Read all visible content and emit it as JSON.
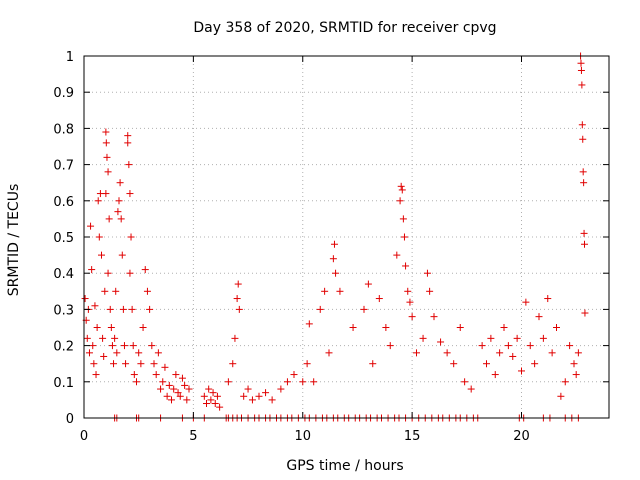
{
  "chart_data": {
    "type": "scatter",
    "title": "Day 358 of 2020, SRMTID for receiver cpvg",
    "xlabel": "GPS time / hours",
    "ylabel": "SRMTID / TECUs",
    "xlim": [
      0,
      24
    ],
    "ylim": [
      0,
      1
    ],
    "xticks": [
      0,
      5,
      10,
      15,
      20
    ],
    "yticks": [
      0,
      0.1,
      0.2,
      0.3,
      0.4,
      0.5,
      0.6,
      0.7,
      0.8,
      0.9,
      1
    ],
    "grid": true,
    "marker": "+",
    "color": "#e00000",
    "series": [
      {
        "name": "SRMTID",
        "points": [
          [
            0.05,
            0.33
          ],
          [
            0.1,
            0.27
          ],
          [
            0.15,
            0.22
          ],
          [
            0.2,
            0.3
          ],
          [
            0.25,
            0.18
          ],
          [
            0.3,
            0.53
          ],
          [
            0.35,
            0.41
          ],
          [
            0.4,
            0.2
          ],
          [
            0.45,
            0.15
          ],
          [
            0.5,
            0.31
          ],
          [
            0.55,
            0.12
          ],
          [
            0.6,
            0.25
          ],
          [
            0.65,
            0.6
          ],
          [
            0.7,
            0.5
          ],
          [
            0.75,
            0.62
          ],
          [
            0.8,
            0.45
          ],
          [
            0.85,
            0.22
          ],
          [
            0.9,
            0.17
          ],
          [
            0.95,
            0.35
          ],
          [
            1.0,
            0.62
          ],
          [
            1.0,
            0.79
          ],
          [
            1.02,
            0.76
          ],
          [
            1.05,
            0.72
          ],
          [
            1.1,
            0.68
          ],
          [
            1.1,
            0.4
          ],
          [
            1.15,
            0.55
          ],
          [
            1.2,
            0.3
          ],
          [
            1.25,
            0.25
          ],
          [
            1.3,
            0.2
          ],
          [
            1.35,
            0.15
          ],
          [
            1.4,
            0.22
          ],
          [
            1.45,
            0.35
          ],
          [
            1.5,
            0.18
          ],
          [
            1.55,
            0.57
          ],
          [
            1.6,
            0.6
          ],
          [
            1.65,
            0.65
          ],
          [
            1.7,
            0.55
          ],
          [
            1.75,
            0.45
          ],
          [
            1.8,
            0.3
          ],
          [
            1.85,
            0.2
          ],
          [
            1.9,
            0.15
          ],
          [
            2.0,
            0.78
          ],
          [
            2.0,
            0.76
          ],
          [
            2.05,
            0.7
          ],
          [
            2.1,
            0.62
          ],
          [
            2.1,
            0.4
          ],
          [
            2.15,
            0.5
          ],
          [
            2.2,
            0.3
          ],
          [
            2.25,
            0.2
          ],
          [
            2.3,
            0.12
          ],
          [
            2.4,
            0.1
          ],
          [
            2.5,
            0.18
          ],
          [
            2.6,
            0.15
          ],
          [
            2.7,
            0.25
          ],
          [
            2.8,
            0.41
          ],
          [
            2.9,
            0.35
          ],
          [
            3.0,
            0.3
          ],
          [
            3.1,
            0.2
          ],
          [
            3.2,
            0.15
          ],
          [
            3.3,
            0.12
          ],
          [
            3.4,
            0.18
          ],
          [
            3.5,
            0.08
          ],
          [
            3.6,
            0.1
          ],
          [
            3.7,
            0.14
          ],
          [
            3.8,
            0.06
          ],
          [
            3.9,
            0.09
          ],
          [
            4.0,
            0.05
          ],
          [
            4.1,
            0.08
          ],
          [
            4.2,
            0.12
          ],
          [
            4.3,
            0.07
          ],
          [
            4.4,
            0.06
          ],
          [
            4.5,
            0.11
          ],
          [
            4.6,
            0.09
          ],
          [
            4.7,
            0.05
          ],
          [
            4.8,
            0.08
          ],
          [
            5.5,
            0.06
          ],
          [
            5.6,
            0.04
          ],
          [
            5.7,
            0.08
          ],
          [
            5.8,
            0.05
          ],
          [
            5.9,
            0.07
          ],
          [
            6.0,
            0.04
          ],
          [
            6.1,
            0.06
          ],
          [
            6.2,
            0.03
          ],
          [
            6.6,
            0.1
          ],
          [
            6.8,
            0.15
          ],
          [
            6.9,
            0.22
          ],
          [
            7.0,
            0.33
          ],
          [
            7.05,
            0.37
          ],
          [
            7.1,
            0.3
          ],
          [
            7.3,
            0.06
          ],
          [
            7.5,
            0.08
          ],
          [
            7.7,
            0.05
          ],
          [
            8.0,
            0.06
          ],
          [
            8.3,
            0.07
          ],
          [
            8.6,
            0.05
          ],
          [
            9.0,
            0.08
          ],
          [
            9.3,
            0.1
          ],
          [
            9.6,
            0.12
          ],
          [
            10.0,
            0.1
          ],
          [
            10.2,
            0.15
          ],
          [
            10.3,
            0.26
          ],
          [
            10.5,
            0.1
          ],
          [
            10.8,
            0.3
          ],
          [
            11.0,
            0.35
          ],
          [
            11.2,
            0.18
          ],
          [
            11.4,
            0.44
          ],
          [
            11.45,
            0.48
          ],
          [
            11.5,
            0.4
          ],
          [
            11.7,
            0.35
          ],
          [
            12.3,
            0.25
          ],
          [
            12.8,
            0.3
          ],
          [
            13.0,
            0.37
          ],
          [
            13.2,
            0.15
          ],
          [
            13.5,
            0.33
          ],
          [
            13.8,
            0.25
          ],
          [
            14.0,
            0.2
          ],
          [
            14.3,
            0.45
          ],
          [
            14.45,
            0.6
          ],
          [
            14.5,
            0.64
          ],
          [
            14.55,
            0.63
          ],
          [
            14.6,
            0.55
          ],
          [
            14.65,
            0.5
          ],
          [
            14.7,
            0.42
          ],
          [
            14.8,
            0.35
          ],
          [
            14.9,
            0.32
          ],
          [
            15.0,
            0.28
          ],
          [
            15.2,
            0.18
          ],
          [
            15.5,
            0.22
          ],
          [
            15.7,
            0.4
          ],
          [
            15.8,
            0.35
          ],
          [
            16.0,
            0.28
          ],
          [
            16.3,
            0.21
          ],
          [
            16.6,
            0.18
          ],
          [
            16.9,
            0.15
          ],
          [
            17.2,
            0.25
          ],
          [
            17.4,
            0.1
          ],
          [
            17.7,
            0.08
          ],
          [
            18.2,
            0.2
          ],
          [
            18.4,
            0.15
          ],
          [
            18.6,
            0.22
          ],
          [
            18.8,
            0.12
          ],
          [
            19.0,
            0.18
          ],
          [
            19.2,
            0.25
          ],
          [
            19.4,
            0.2
          ],
          [
            19.6,
            0.17
          ],
          [
            19.8,
            0.22
          ],
          [
            20.0,
            0.13
          ],
          [
            20.2,
            0.32
          ],
          [
            20.4,
            0.2
          ],
          [
            20.6,
            0.15
          ],
          [
            20.8,
            0.28
          ],
          [
            21.0,
            0.22
          ],
          [
            21.2,
            0.33
          ],
          [
            21.4,
            0.18
          ],
          [
            21.6,
            0.25
          ],
          [
            21.8,
            0.06
          ],
          [
            22.0,
            0.1
          ],
          [
            22.2,
            0.2
          ],
          [
            22.4,
            0.15
          ],
          [
            22.5,
            0.12
          ],
          [
            22.6,
            0.18
          ],
          [
            22.7,
            1.0
          ],
          [
            22.72,
            0.98
          ],
          [
            22.74,
            0.96
          ],
          [
            22.76,
            0.92
          ],
          [
            22.78,
            0.81
          ],
          [
            22.8,
            0.77
          ],
          [
            22.82,
            0.68
          ],
          [
            22.84,
            0.65
          ],
          [
            22.86,
            0.51
          ],
          [
            22.88,
            0.48
          ],
          [
            22.9,
            0.29
          ]
        ]
      }
    ],
    "zero_points_x": [
      1.4,
      1.5,
      2.4,
      2.5,
      3.5,
      4.5,
      5.0,
      5.5,
      6.5,
      6.6,
      6.8,
      7.0,
      7.2,
      7.5,
      7.8,
      8.0,
      8.3,
      8.5,
      8.8,
      9.0,
      9.3,
      9.5,
      9.8,
      10.1,
      10.3,
      10.6,
      10.9,
      11.1,
      11.4,
      11.6,
      11.9,
      12.1,
      12.4,
      12.6,
      12.9,
      13.1,
      13.4,
      13.6,
      13.9,
      14.2,
      14.4,
      14.7,
      15.0,
      15.3,
      15.6,
      15.9,
      16.2,
      16.4,
      16.7,
      17.0,
      17.2,
      17.5,
      17.8,
      18.0,
      19.9,
      20.1,
      21.0,
      21.3,
      22.0,
      22.3,
      22.6
    ]
  }
}
